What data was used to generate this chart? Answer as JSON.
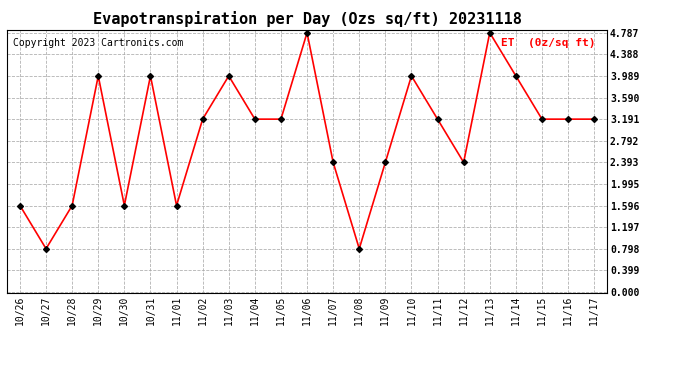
{
  "title": "Evapotranspiration per Day (Ozs sq/ft) 20231118",
  "copyright": "Copyright 2023 Cartronics.com",
  "legend_label": "ET  (0z/sq ft)",
  "x_labels": [
    "10/26",
    "10/27",
    "10/28",
    "10/29",
    "10/30",
    "10/31",
    "11/01",
    "11/02",
    "11/03",
    "11/04",
    "11/05",
    "11/06",
    "11/07",
    "11/08",
    "11/09",
    "11/10",
    "11/11",
    "11/12",
    "11/13",
    "11/14",
    "11/15",
    "11/16",
    "11/17"
  ],
  "y_values": [
    1.596,
    0.798,
    1.596,
    3.989,
    1.596,
    3.989,
    1.596,
    3.191,
    3.989,
    3.191,
    3.191,
    4.787,
    2.393,
    0.798,
    2.393,
    3.989,
    3.191,
    2.393,
    4.787,
    3.989,
    3.191,
    3.191,
    3.191
  ],
  "y_ticks": [
    0.0,
    0.399,
    0.798,
    1.197,
    1.596,
    1.995,
    2.393,
    2.792,
    3.191,
    3.59,
    3.989,
    4.388,
    4.787
  ],
  "y_min": 0.0,
  "y_max": 4.787,
  "line_color": "red",
  "marker_color": "black",
  "marker_size": 3,
  "line_width": 1.2,
  "title_fontsize": 11,
  "copyright_fontsize": 7,
  "tick_fontsize": 7,
  "legend_color": "red",
  "legend_fontsize": 8,
  "background_color": "white",
  "grid_color": "#aaaaaa"
}
